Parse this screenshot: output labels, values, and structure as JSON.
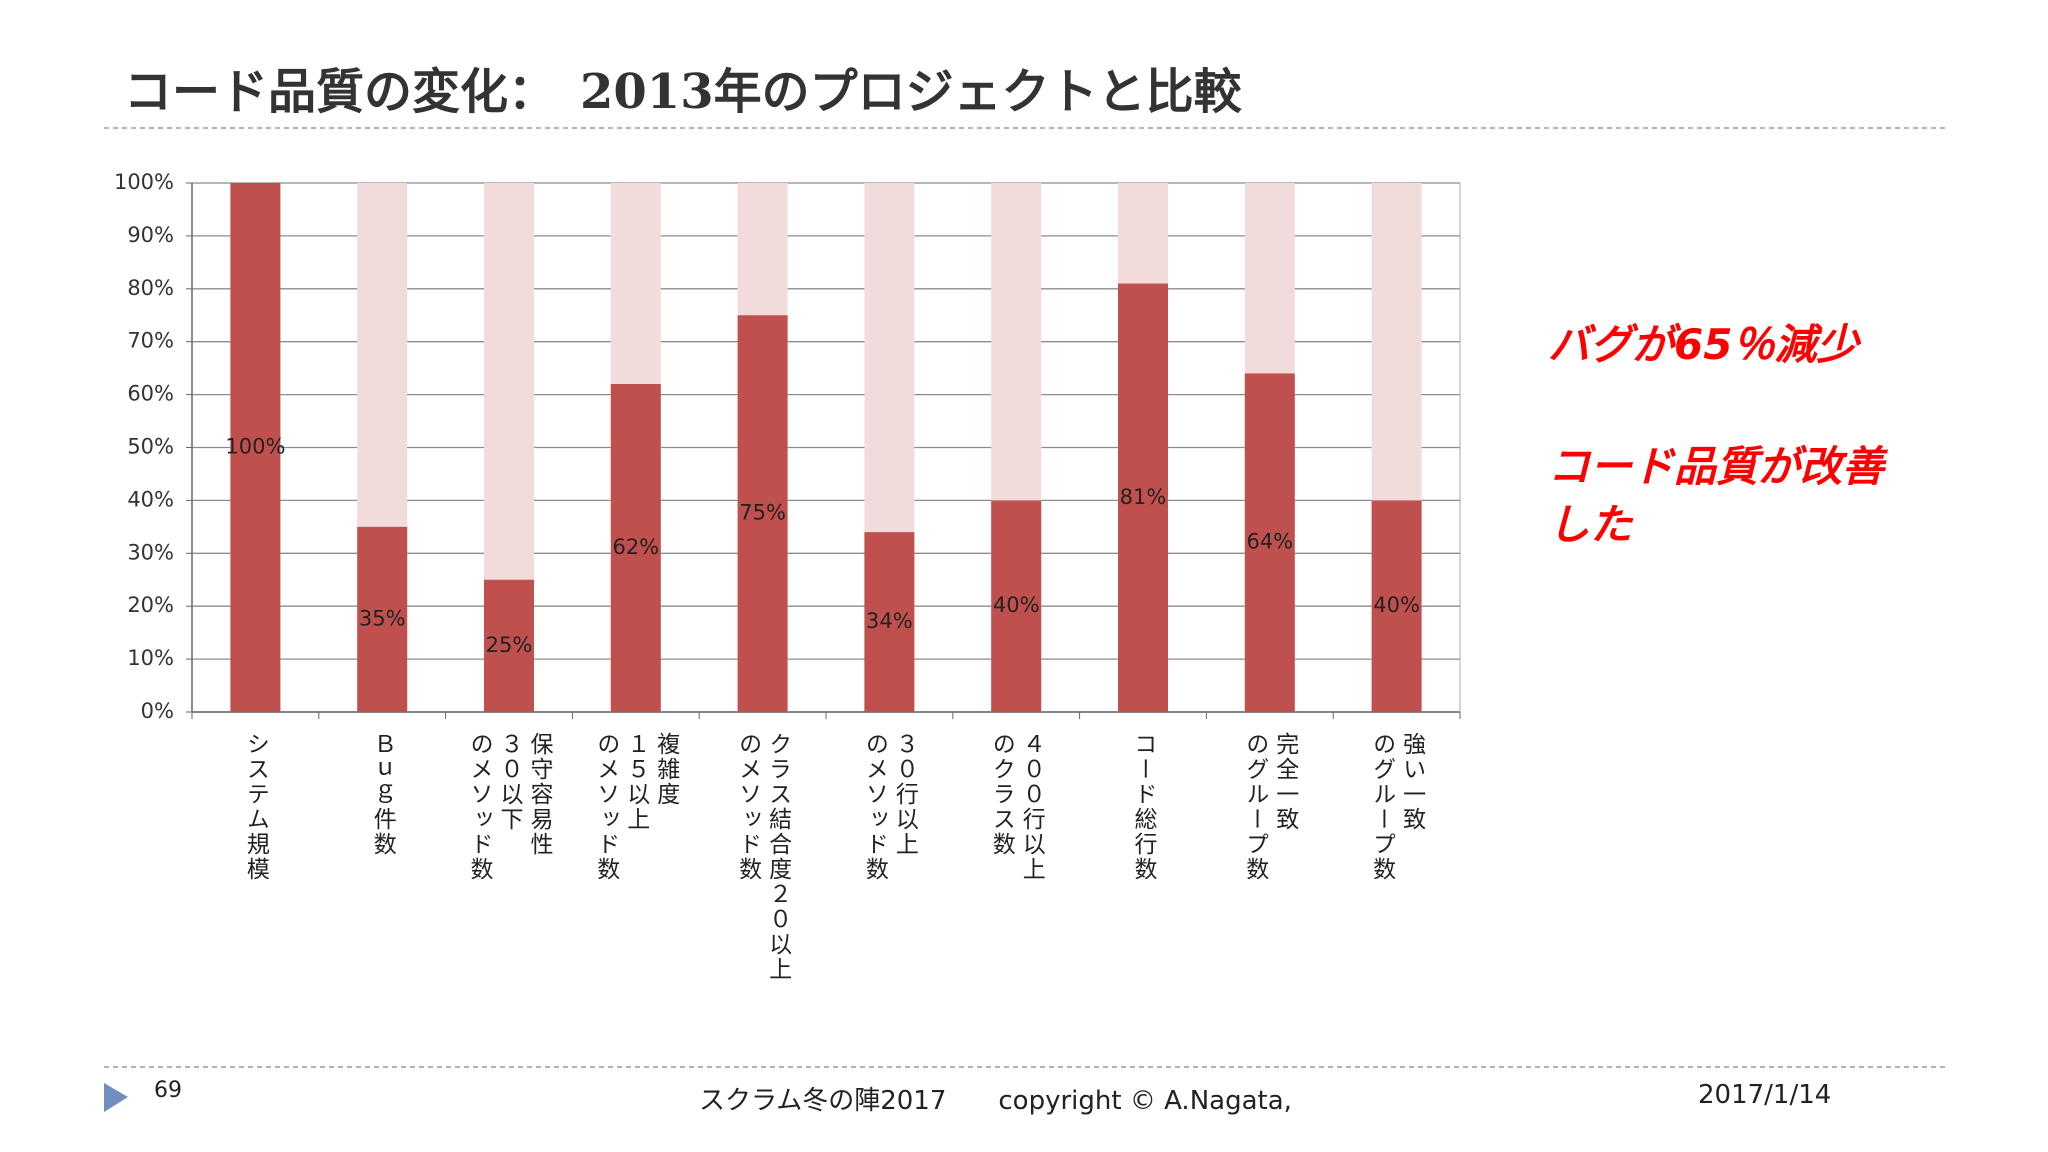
{
  "slide": {
    "title": "コード品質の変化：　2013年のプロジェクトと比較",
    "notes": [
      "バグが65％減少",
      "コード品質が改善\nした"
    ],
    "footer": {
      "page": "69",
      "center": "スクラム冬の陣2017　　copyright © A.Nagata,",
      "date": "2017/1/14"
    }
  },
  "chart_data": {
    "type": "bar",
    "categories": [
      "システム規模",
      "Ｂｕｇ件数",
      "保守容易性\n３０以下\nのメソッド数",
      "複雑度\n１５以上\nのメソッド数",
      "クラス結合度２０以上\nのメソッド数",
      "３０行以上\nのメソッド数",
      "４００行以上\nのクラス数",
      "コード総行数",
      "完全一致\nのグループ数",
      "強い一致\nのグループ数"
    ],
    "values": [
      100,
      35,
      25,
      62,
      75,
      34,
      40,
      81,
      64,
      40
    ],
    "value_labels": [
      "100%",
      "35%",
      "25%",
      "62%",
      "75%",
      "34%",
      "40%",
      "81%",
      "64%",
      "40%"
    ],
    "color": "#c0504d",
    "track_color": "#f2dcdb",
    "ylim": [
      0,
      100
    ],
    "yticks": [
      {
        "value": 0,
        "label": "0%"
      },
      {
        "value": 10,
        "label": "10%"
      },
      {
        "value": 20,
        "label": "20%"
      },
      {
        "value": 30,
        "label": "30%"
      },
      {
        "value": 40,
        "label": "40%"
      },
      {
        "value": 50,
        "label": "50%"
      },
      {
        "value": 60,
        "label": "60%"
      },
      {
        "value": 70,
        "label": "70%"
      },
      {
        "value": 80,
        "label": "80%"
      },
      {
        "value": 90,
        "label": "90%"
      },
      {
        "value": 100,
        "label": "100%"
      }
    ],
    "grid": true
  }
}
